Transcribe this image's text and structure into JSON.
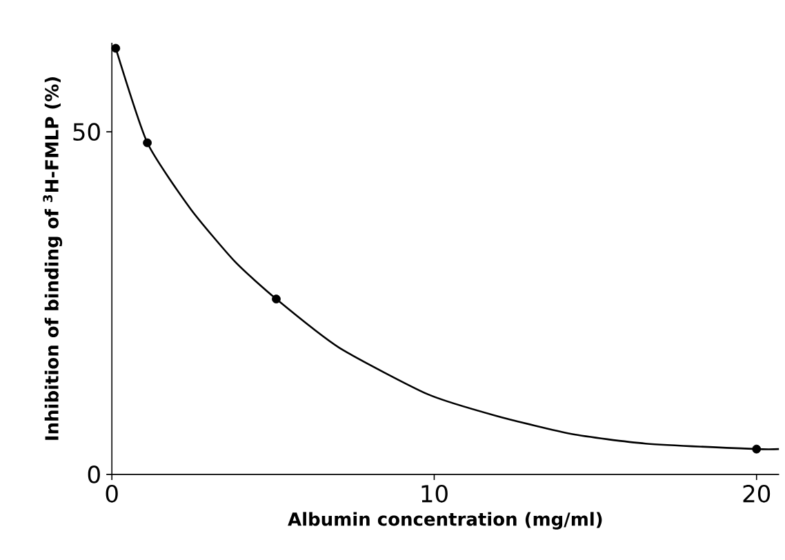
{
  "chart_data": {
    "type": "scatter",
    "xlabel": "Albumin concentration (mg/ml)",
    "ylabel": "Inhibition of binding of $^{3}$H-FMLP (%)",
    "xlim": [
      0,
      20.7
    ],
    "ylim": [
      0,
      63
    ],
    "xticks": [
      0,
      10,
      20
    ],
    "yticks": [
      0,
      50
    ],
    "grid": false,
    "series": [
      {
        "type": "line",
        "color": "#000000",
        "marker": "none",
        "line_style": "solid",
        "x": [
          0.12,
          1.1,
          2.45,
          3.83,
          5.1,
          7.05,
          9.8,
          11.96,
          14.26,
          16.56,
          20,
          20.7
        ],
        "values": [
          62.2,
          48.4,
          38.7,
          31,
          25.6,
          18.5,
          11.7,
          8.5,
          5.9,
          4.5,
          3.7,
          3.7
        ]
      },
      {
        "color": "#000000",
        "marker": "circle",
        "x": [
          0.12,
          1.1,
          5.1,
          20
        ],
        "values": [
          62.2,
          48.4,
          25.6,
          3.7
        ]
      }
    ]
  }
}
